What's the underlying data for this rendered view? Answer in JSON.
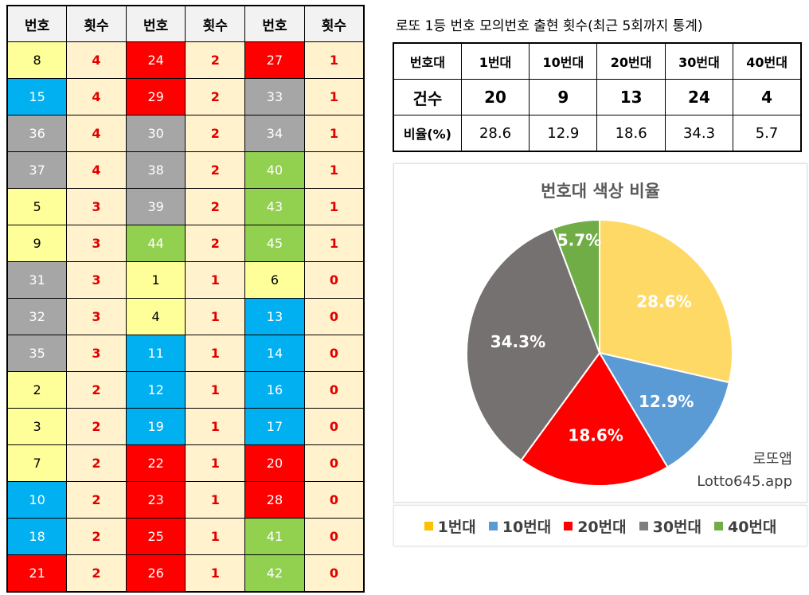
{
  "freq_table": {
    "headers": [
      "번호",
      "횟수",
      "번호",
      "횟수",
      "번호",
      "횟수"
    ],
    "rows": [
      [
        {
          "n": "8",
          "c": "4"
        },
        {
          "n": "24",
          "c": "2"
        },
        {
          "n": "27",
          "c": "1"
        }
      ],
      [
        {
          "n": "15",
          "c": "4"
        },
        {
          "n": "29",
          "c": "2"
        },
        {
          "n": "33",
          "c": "1"
        }
      ],
      [
        {
          "n": "36",
          "c": "4"
        },
        {
          "n": "30",
          "c": "2"
        },
        {
          "n": "34",
          "c": "1"
        }
      ],
      [
        {
          "n": "37",
          "c": "4"
        },
        {
          "n": "38",
          "c": "2"
        },
        {
          "n": "40",
          "c": "1"
        }
      ],
      [
        {
          "n": "5",
          "c": "3"
        },
        {
          "n": "39",
          "c": "2"
        },
        {
          "n": "43",
          "c": "1"
        }
      ],
      [
        {
          "n": "9",
          "c": "3"
        },
        {
          "n": "44",
          "c": "2"
        },
        {
          "n": "45",
          "c": "1"
        }
      ],
      [
        {
          "n": "31",
          "c": "3"
        },
        {
          "n": "1",
          "c": "1"
        },
        {
          "n": "6",
          "c": "0"
        }
      ],
      [
        {
          "n": "32",
          "c": "3"
        },
        {
          "n": "4",
          "c": "1"
        },
        {
          "n": "13",
          "c": "0"
        }
      ],
      [
        {
          "n": "35",
          "c": "3"
        },
        {
          "n": "11",
          "c": "1"
        },
        {
          "n": "14",
          "c": "0"
        }
      ],
      [
        {
          "n": "2",
          "c": "2"
        },
        {
          "n": "12",
          "c": "1"
        },
        {
          "n": "16",
          "c": "0"
        }
      ],
      [
        {
          "n": "3",
          "c": "2"
        },
        {
          "n": "19",
          "c": "1"
        },
        {
          "n": "17",
          "c": "0"
        }
      ],
      [
        {
          "n": "7",
          "c": "2"
        },
        {
          "n": "22",
          "c": "1"
        },
        {
          "n": "20",
          "c": "0"
        }
      ],
      [
        {
          "n": "10",
          "c": "2"
        },
        {
          "n": "23",
          "c": "1"
        },
        {
          "n": "28",
          "c": "0"
        }
      ],
      [
        {
          "n": "18",
          "c": "2"
        },
        {
          "n": "25",
          "c": "1"
        },
        {
          "n": "41",
          "c": "0"
        }
      ],
      [
        {
          "n": "21",
          "c": "2"
        },
        {
          "n": "26",
          "c": "1"
        },
        {
          "n": "42",
          "c": "0"
        }
      ]
    ]
  },
  "band_colors": {
    "1": {
      "bg": "#ffff99",
      "fg": "#000000"
    },
    "10": {
      "bg": "#00b0f0",
      "fg": "#ffffff"
    },
    "20": {
      "bg": "#ff0000",
      "fg": "#ffffff"
    },
    "30": {
      "bg": "#a6a6a6",
      "fg": "#ffffff"
    },
    "40": {
      "bg": "#92d050",
      "fg": "#ffffff"
    }
  },
  "title": "로또 1등 번호 모의번호 출현 횟수(최근 5회까지 통계)",
  "summary": {
    "headers": [
      "번호대",
      "1번대",
      "10번대",
      "20번대",
      "30번대",
      "40번대"
    ],
    "count_label": "건수",
    "counts": [
      "20",
      "9",
      "13",
      "24",
      "4"
    ],
    "ratio_label": "비율(%)",
    "ratios": [
      "28.6",
      "12.9",
      "18.6",
      "34.3",
      "5.7"
    ]
  },
  "chart_data": {
    "type": "pie",
    "title": "번호대 색상 비율",
    "categories": [
      "1번대",
      "10번대",
      "20번대",
      "30번대",
      "40번대"
    ],
    "values": [
      28.6,
      12.9,
      18.6,
      34.3,
      5.7
    ],
    "labels": [
      "28.6%",
      "12.9%",
      "18.6%",
      "34.3%",
      "5.7%"
    ],
    "colors": [
      "#ffd966",
      "#5b9bd5",
      "#ff0000",
      "#767171",
      "#70ad47"
    ],
    "legend_colors": [
      "#ffc000",
      "#5b9bd5",
      "#ff0000",
      "#7f7f7f",
      "#70ad47"
    ],
    "legend": "bottom"
  },
  "watermark": {
    "line1": "로또앱",
    "line2": "Lotto645.app"
  }
}
